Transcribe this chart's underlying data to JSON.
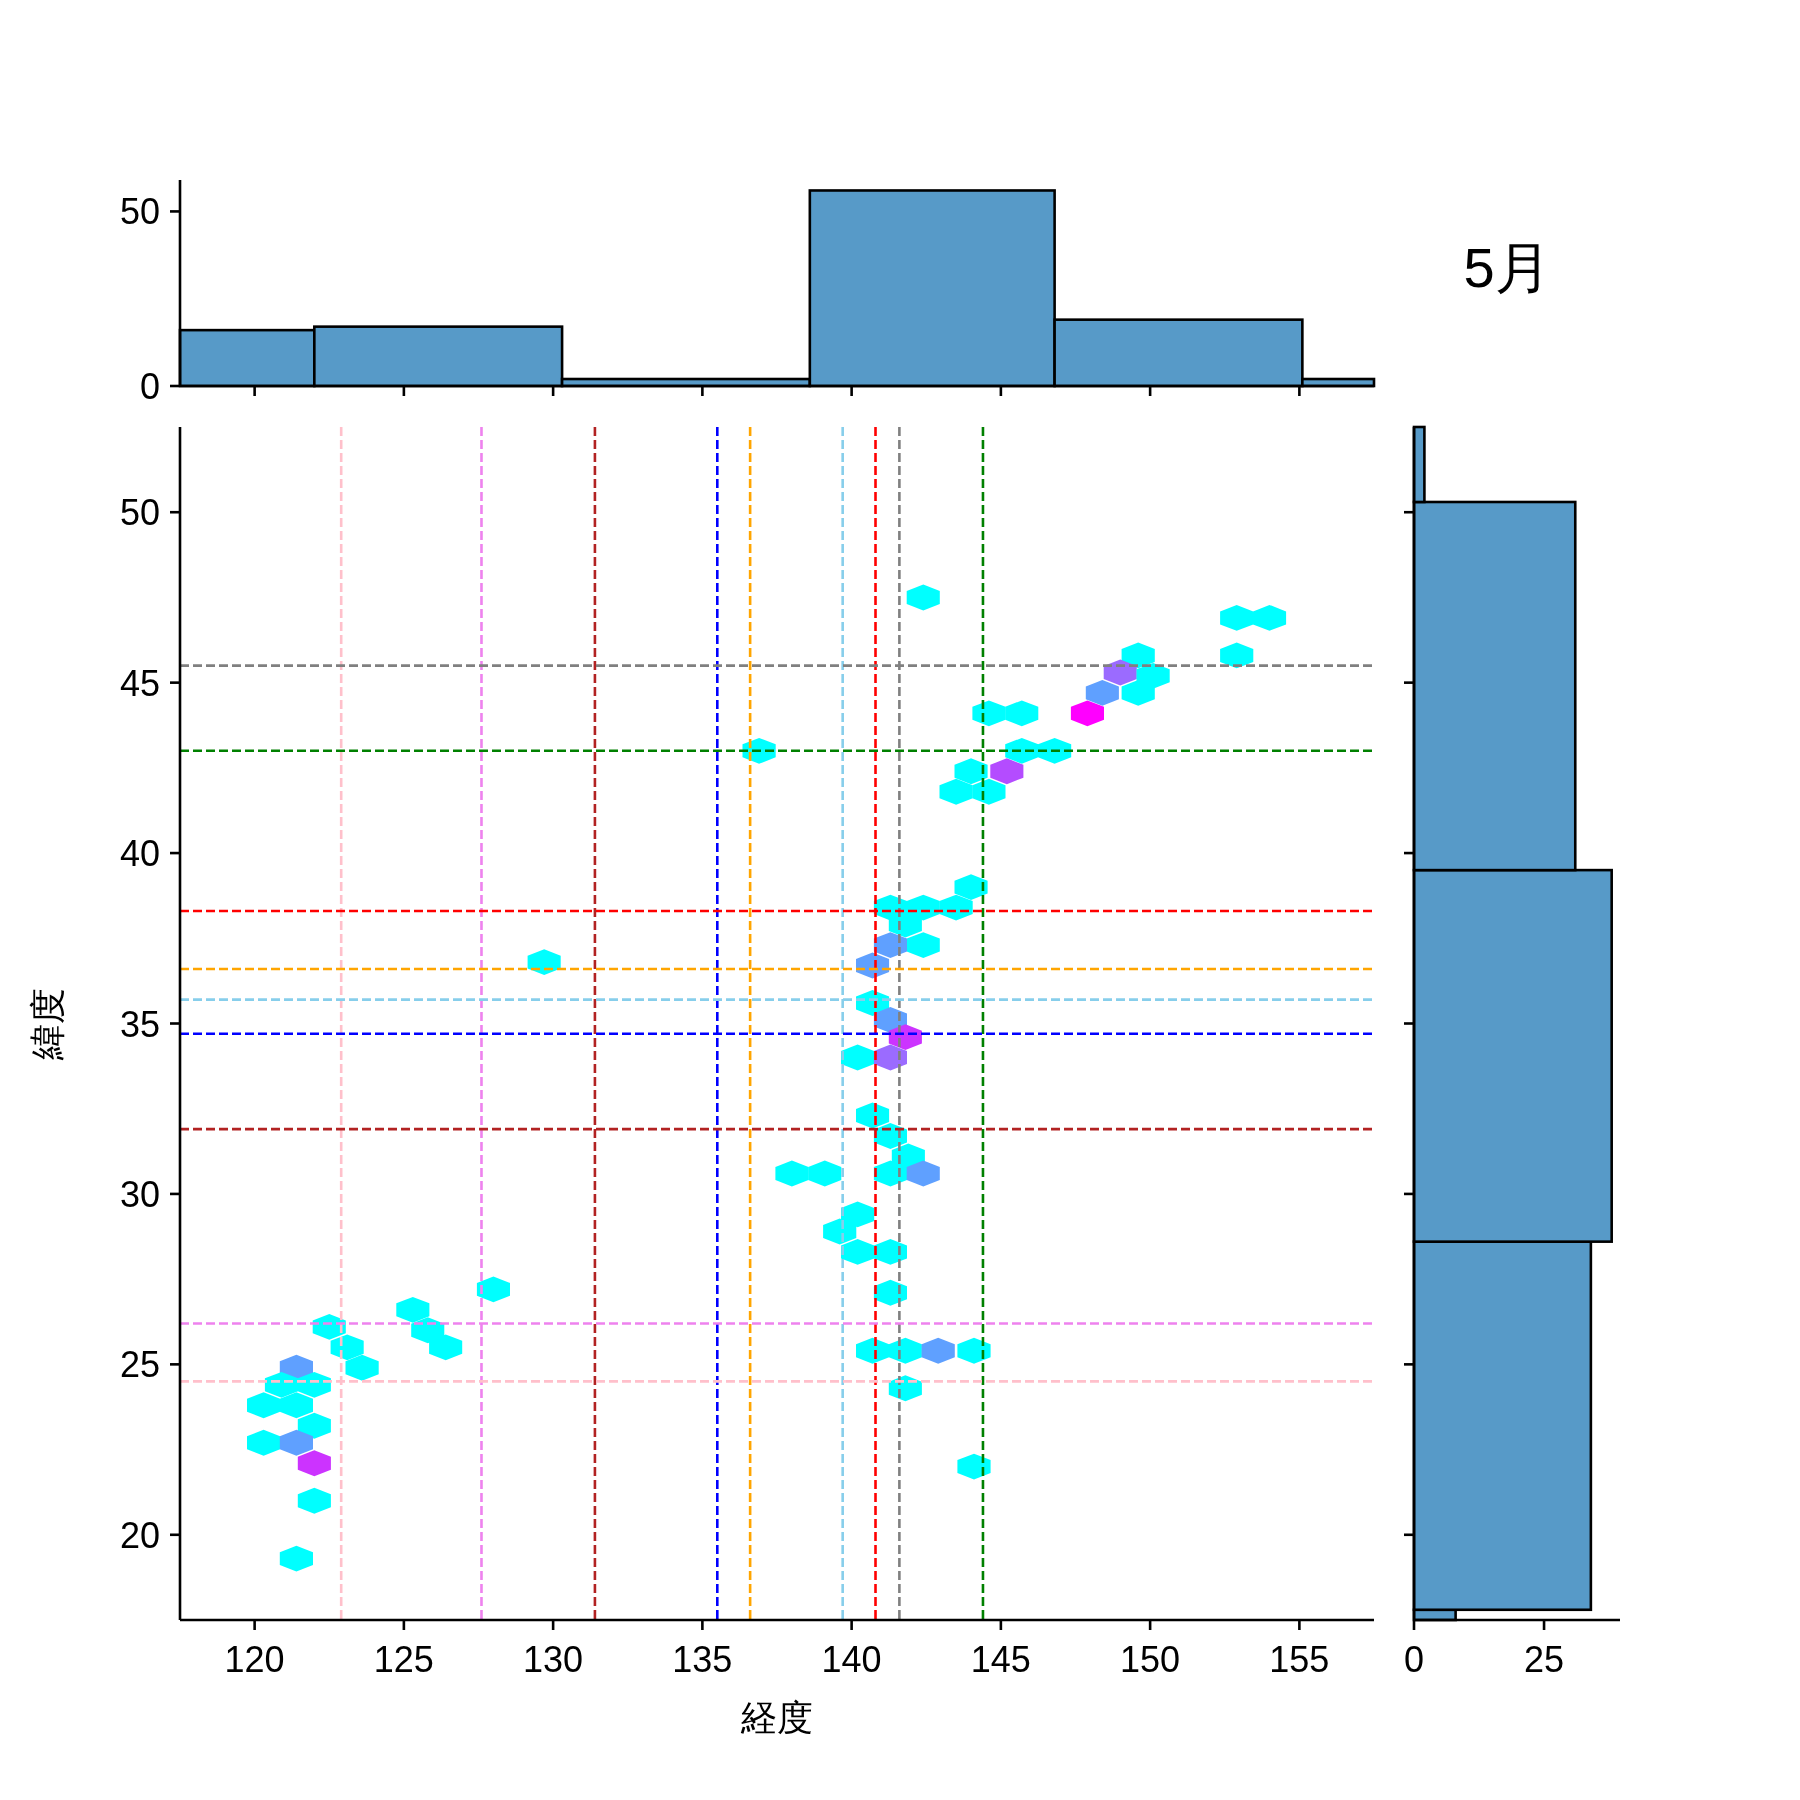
{
  "chart_data": [
    {
      "type": "histogram",
      "bins": [
        117.5,
        122.0,
        130.3,
        138.6,
        146.8,
        155.1,
        157.5
      ],
      "values": [
        16,
        17,
        2,
        56,
        19,
        2
      ],
      "color": "#579ac8",
      "xlim": [
        117.5,
        157.5
      ],
      "xticks": [
        120,
        125,
        130,
        135,
        140,
        145,
        150,
        155
      ],
      "ylim": [
        0,
        59
      ],
      "yticks": [
        0,
        50
      ],
      "tick_labels": "y"
    },
    {
      "type": "scatter",
      "xlabel": "経度",
      "ylabel": "緯度",
      "xlim": [
        117.5,
        157.5
      ],
      "xticks": [
        120,
        125,
        130,
        135,
        140,
        145,
        150,
        155
      ],
      "ylim": [
        17.5,
        52.5
      ],
      "yticks": [
        20,
        25,
        30,
        35,
        40,
        45,
        50
      ],
      "series": [
        {
          "x": [
            142.4,
            152.9,
            154.0,
            152.9,
            149.6,
            149.0,
            150.1,
            148.4,
            149.6,
            147.9,
            144.6,
            145.7,
            145.7,
            146.8,
            145.2,
            144.0,
            143.5,
            144.6,
            136.9,
            144.0,
            141.3,
            142.4,
            143.5,
            141.8,
            142.4,
            141.3,
            140.7,
            129.7,
            140.7,
            141.3,
            141.8,
            140.2,
            141.3,
            140.7,
            141.3,
            141.9,
            141.3,
            142.4,
            138.0,
            139.1,
            140.2,
            139.6,
            140.2,
            141.3,
            141.3,
            140.7,
            141.8,
            142.9,
            144.1,
            141.8,
            144.1,
            128.0,
            125.3,
            125.8,
            126.4,
            122.5,
            123.1,
            123.6,
            121.4,
            120.9,
            122.0,
            120.3,
            121.4,
            122.0,
            120.3,
            121.4,
            122.0,
            122.0,
            121.4
          ],
          "values": [
            47.5,
            46.9,
            46.9,
            45.8,
            45.8,
            45.3,
            45.2,
            44.7,
            44.7,
            44.1,
            44.1,
            44.1,
            43.0,
            43.0,
            42.4,
            42.4,
            41.8,
            41.8,
            43.0,
            39.0,
            38.4,
            38.4,
            38.4,
            37.9,
            37.3,
            37.3,
            36.7,
            36.8,
            35.6,
            35.1,
            34.6,
            34.0,
            34.0,
            32.3,
            31.7,
            31.1,
            30.6,
            30.6,
            30.6,
            30.6,
            29.4,
            28.9,
            28.3,
            28.3,
            27.1,
            25.4,
            25.4,
            25.4,
            25.4,
            24.3,
            22.0,
            27.2,
            26.6,
            26.0,
            25.5,
            26.1,
            25.5,
            24.9,
            24.9,
            24.4,
            24.4,
            23.8,
            23.8,
            23.2,
            22.7,
            22.7,
            22.1,
            21.0,
            19.3
          ],
          "colors": [
            "#00ffff",
            "#00ffff",
            "#00ffff",
            "#00ffff",
            "#00ffff",
            "#9b6bff",
            "#00ffff",
            "#5fa0ff",
            "#00ffff",
            "#ff00ff",
            "#00ffff",
            "#00ffff",
            "#00ffff",
            "#00ffff",
            "#b44cff",
            "#00ffff",
            "#00ffff",
            "#00ffff",
            "#00ffff",
            "#00ffff",
            "#00ffff",
            "#00ffff",
            "#00ffff",
            "#00ffff",
            "#00ffff",
            "#5fa0ff",
            "#5fa0ff",
            "#00ffff",
            "#00ffff",
            "#5fa0ff",
            "#cc33ff",
            "#00ffff",
            "#9b6bff",
            "#00ffff",
            "#00ffff",
            "#00ffff",
            "#00ffff",
            "#5fa0ff",
            "#00ffff",
            "#00ffff",
            "#00ffff",
            "#00ffff",
            "#00ffff",
            "#00ffff",
            "#00ffff",
            "#00ffff",
            "#00ffff",
            "#5fa0ff",
            "#00ffff",
            "#00ffff",
            "#00ffff",
            "#00ffff",
            "#00ffff",
            "#00ffff",
            "#00ffff",
            "#00ffff",
            "#00ffff",
            "#00ffff",
            "#5fa0ff",
            "#00ffff",
            "#00ffff",
            "#00ffff",
            "#00ffff",
            "#00ffff",
            "#00ffff",
            "#5fa0ff",
            "#cc33ff",
            "#00ffff",
            "#00ffff"
          ]
        }
      ],
      "ref_lines": [
        {
          "axis": "x",
          "value": 122.9,
          "color": "#ffc0cb",
          "line_style": "dashed"
        },
        {
          "axis": "x",
          "value": 127.6,
          "color": "#ee82ee",
          "line_style": "dashed"
        },
        {
          "axis": "x",
          "value": 131.4,
          "color": "#b22222",
          "line_style": "dashed"
        },
        {
          "axis": "x",
          "value": 135.5,
          "color": "#0000ff",
          "line_style": "dashed"
        },
        {
          "axis": "x",
          "value": 136.6,
          "color": "#ffa500",
          "line_style": "dashed"
        },
        {
          "axis": "x",
          "value": 139.7,
          "color": "#87ceeb",
          "line_style": "dashed"
        },
        {
          "axis": "x",
          "value": 140.8,
          "color": "#ff0000",
          "line_style": "dashed"
        },
        {
          "axis": "x",
          "value": 141.6,
          "color": "#808080",
          "line_style": "dashed"
        },
        {
          "axis": "x",
          "value": 144.4,
          "color": "#008000",
          "line_style": "dashed"
        },
        {
          "axis": "y",
          "value": 45.5,
          "color": "#808080",
          "line_style": "dashed"
        },
        {
          "axis": "y",
          "value": 43.0,
          "color": "#008000",
          "line_style": "dashed"
        },
        {
          "axis": "y",
          "value": 38.3,
          "color": "#ff0000",
          "line_style": "dashed"
        },
        {
          "axis": "y",
          "value": 36.6,
          "color": "#ffa500",
          "line_style": "dashed"
        },
        {
          "axis": "y",
          "value": 35.7,
          "color": "#87ceeb",
          "line_style": "dashed"
        },
        {
          "axis": "y",
          "value": 34.7,
          "color": "#0000ff",
          "line_style": "dashed"
        },
        {
          "axis": "y",
          "value": 31.9,
          "color": "#b22222",
          "line_style": "dashed"
        },
        {
          "axis": "y",
          "value": 26.2,
          "color": "#ee82ee",
          "line_style": "dashed"
        },
        {
          "axis": "y",
          "value": 24.5,
          "color": "#ffc0cb",
          "line_style": "dashed"
        }
      ]
    },
    {
      "type": "histogram",
      "title": "5月",
      "orientation": "horizontal",
      "bins": [
        17.5,
        17.8,
        28.6,
        39.5,
        50.3,
        52.5
      ],
      "values": [
        8,
        34,
        38,
        31,
        2
      ],
      "color": "#579ac8",
      "xlim": [
        0,
        39.6
      ],
      "xticks": [
        0,
        25
      ],
      "ylim": [
        17.5,
        52.5
      ],
      "yticks": [
        20,
        25,
        30,
        35,
        40,
        45,
        50
      ],
      "tick_labels": "x"
    }
  ]
}
